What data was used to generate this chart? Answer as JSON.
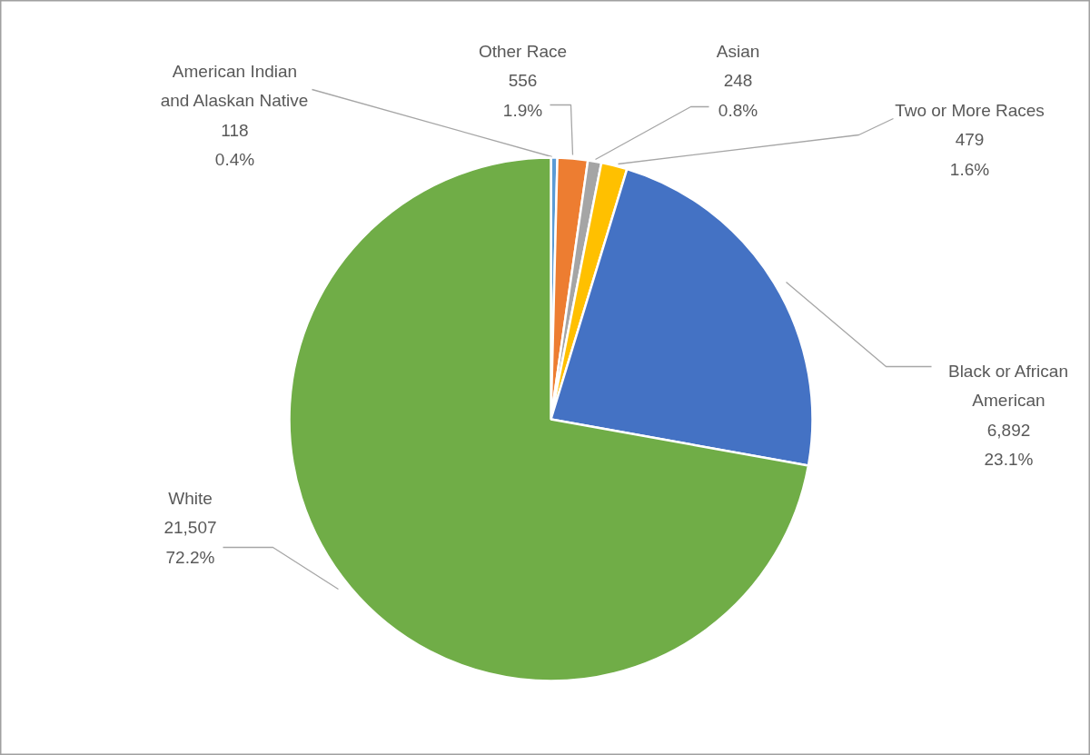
{
  "chart_data": {
    "type": "pie",
    "categories": [
      "American Indian and Alaskan Native",
      "Other Race",
      "Asian",
      "Two or More Races",
      "Black or African American",
      "White"
    ],
    "values": [
      118,
      556,
      248,
      479,
      6892,
      21507
    ],
    "colors": [
      "#5b9bd5",
      "#ed7d31",
      "#a5a5a5",
      "#ffc000",
      "#4472c4",
      "#70ad47"
    ],
    "value_labels": [
      "118\n0.4%",
      "556\n1.9%",
      "248\n0.8%",
      "479\n1.6%",
      "6,892\n23.1%",
      "21,507\n72.2%"
    ],
    "legend": false
  }
}
